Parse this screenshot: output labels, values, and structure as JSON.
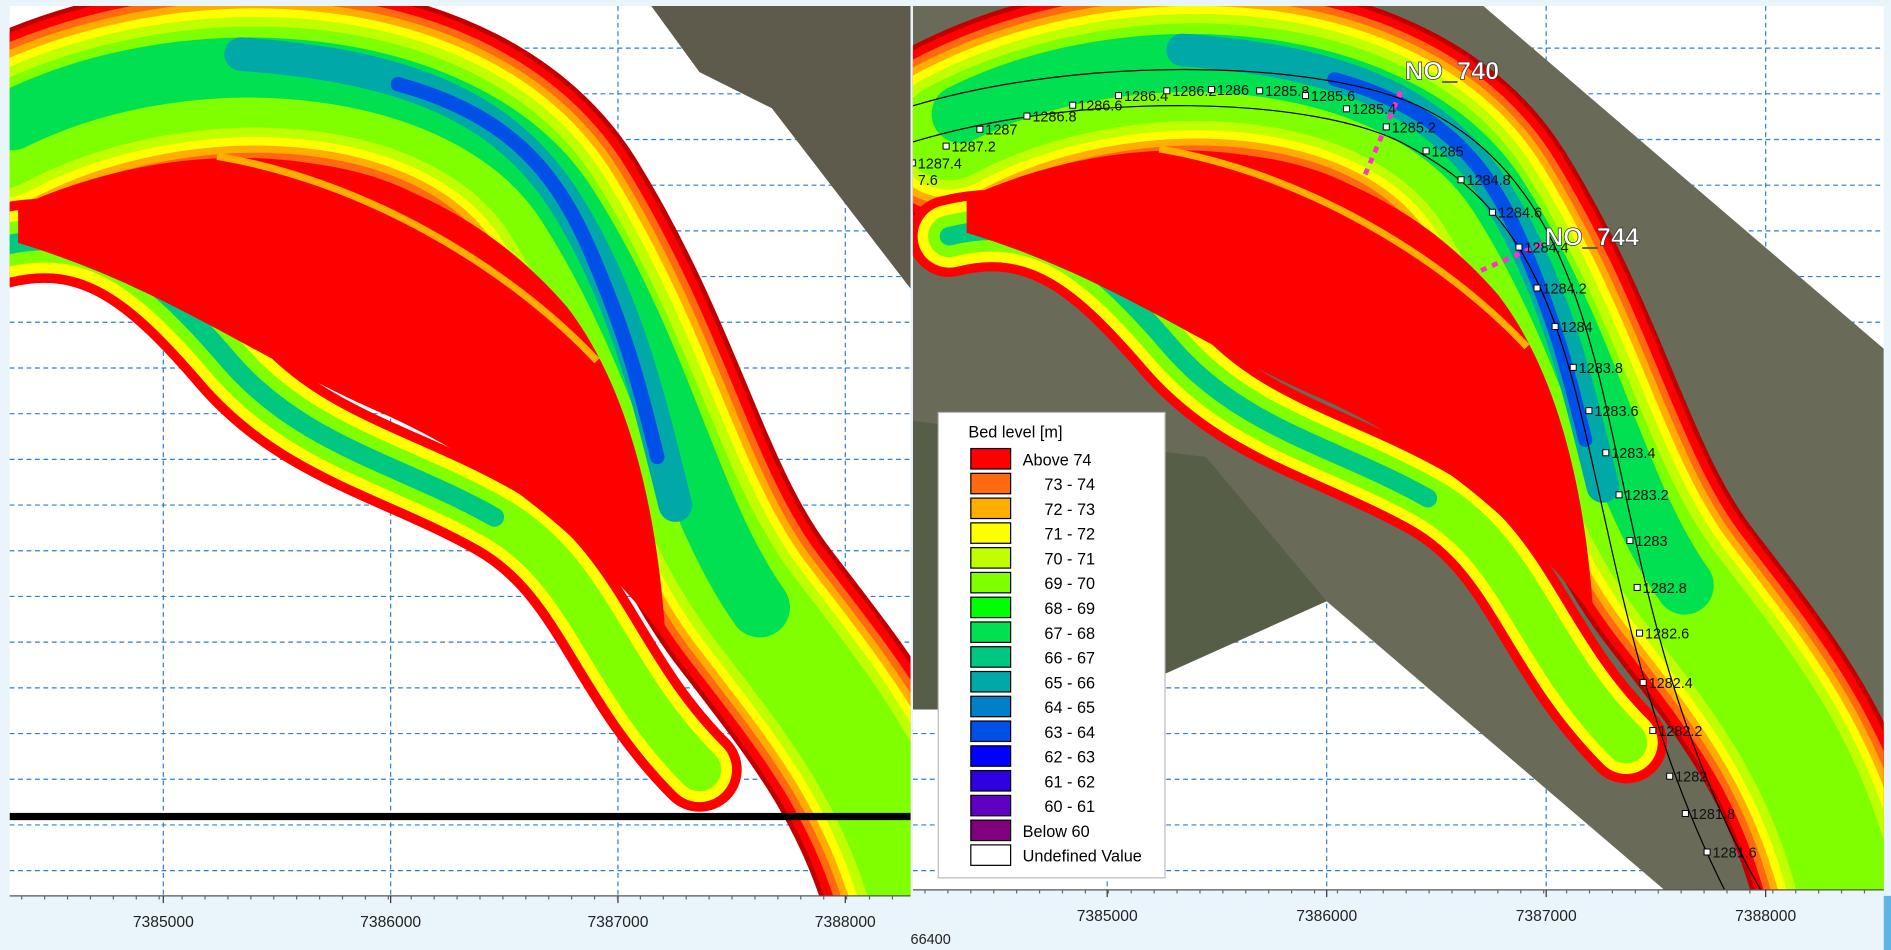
{
  "left_map": {
    "xlim": [
      7384324,
      7388287
    ],
    "xticks": [
      7385000,
      7386000,
      7387000,
      7388000
    ]
  },
  "right_map": {
    "xlim": [
      7384115,
      7388538
    ],
    "xticks": [
      7385000,
      7386000,
      7387000,
      7388000
    ],
    "extra_label": "66400",
    "sections": [
      "NO_740",
      "NO_744"
    ],
    "chainages": [
      "7.6",
      "1287.4",
      "1287.2",
      "1287",
      "1286.8",
      "1286.6",
      "1286.4",
      "1286.2",
      "1286",
      "1285.8",
      "1285.6",
      "1285.4",
      "1285.2",
      "1285",
      "1284.8",
      "1284.6",
      "1284.4",
      "1284.2",
      "1284",
      "1283.8",
      "1283.6",
      "1283.4",
      "1283.2",
      "1283",
      "1282.8",
      "1282.6",
      "1282.4",
      "1282.2",
      "1282",
      "1281.8",
      "1281.6"
    ]
  },
  "legend": {
    "title": "Bed level [m]",
    "items": [
      {
        "label": "Above 74",
        "color": "#ff0000"
      },
      {
        "label": "73 - 74",
        "color": "#ff6a10"
      },
      {
        "label": "72 - 73",
        "color": "#ffae00"
      },
      {
        "label": "71 - 72",
        "color": "#ffff00"
      },
      {
        "label": "70 - 71",
        "color": "#c0ff00"
      },
      {
        "label": "69 - 70",
        "color": "#80ff00"
      },
      {
        "label": "68 - 69",
        "color": "#00ff00"
      },
      {
        "label": "67 - 68",
        "color": "#00e050"
      },
      {
        "label": "66 - 67",
        "color": "#00c880"
      },
      {
        "label": "65 - 66",
        "color": "#00a8a8"
      },
      {
        "label": "64 - 65",
        "color": "#0080c8"
      },
      {
        "label": "63 - 64",
        "color": "#0050e8"
      },
      {
        "label": "62 - 63",
        "color": "#0000ff"
      },
      {
        "label": "61 - 62",
        "color": "#3000e0"
      },
      {
        "label": "60 - 61",
        "color": "#6000c0"
      },
      {
        "label": "Below 60",
        "color": "#800080"
      },
      {
        "label": "Undefined Value",
        "color": "#ffffff"
      }
    ]
  }
}
